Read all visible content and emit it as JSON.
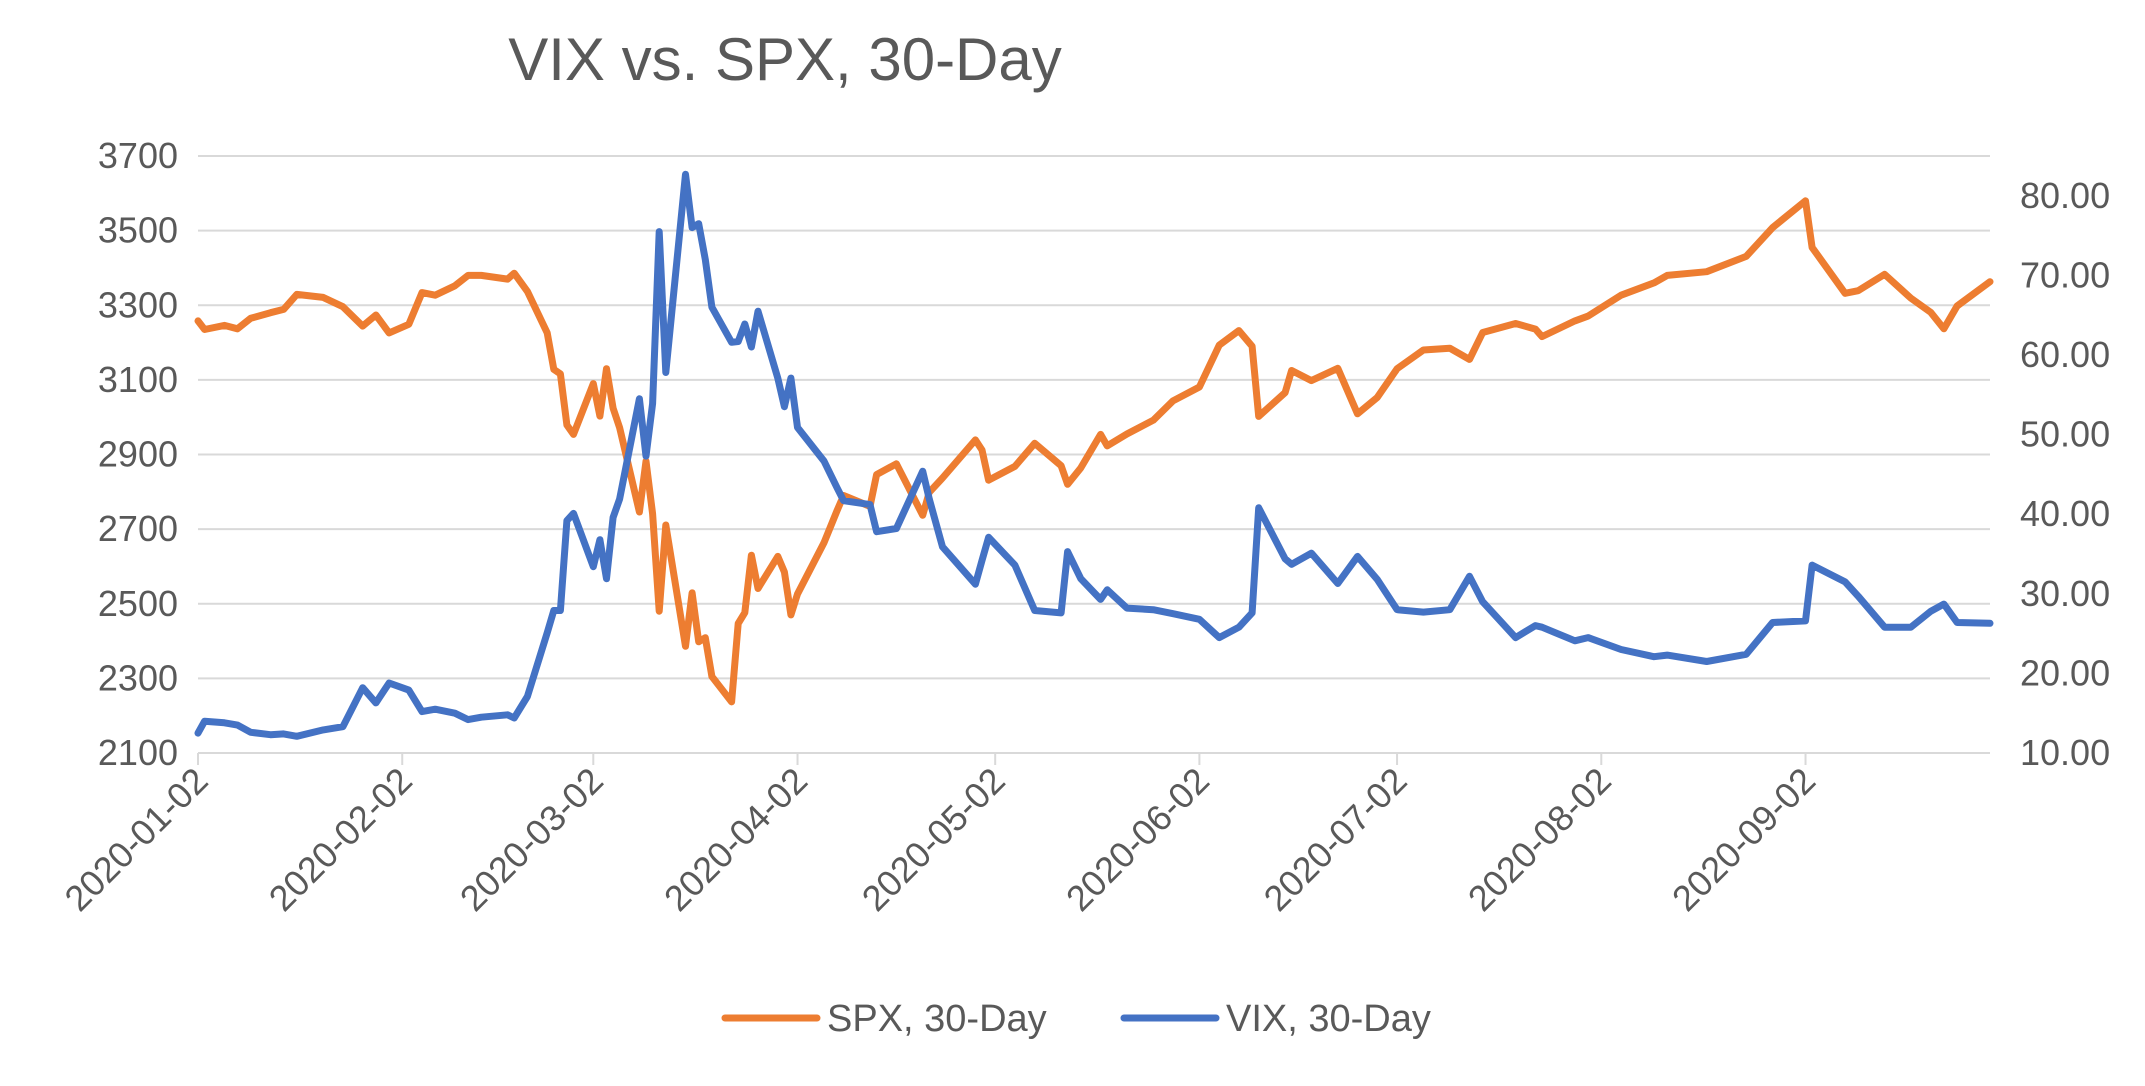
{
  "chart_data": {
    "type": "line",
    "title": "VIX vs. SPX, 30-Day",
    "xlabel": "",
    "ylabel": "",
    "y2label": "",
    "x_range": [
      "2020-01-02",
      "2020-09-30"
    ],
    "ylim": [
      2100,
      3700
    ],
    "y2lim": [
      10,
      85
    ],
    "y_ticks": [
      "2100",
      "2300",
      "2500",
      "2700",
      "2900",
      "3100",
      "3300",
      "3500",
      "3700"
    ],
    "y2_ticks": [
      "10.00",
      "20.00",
      "30.00",
      "40.00",
      "50.00",
      "60.00",
      "70.00",
      "80.00"
    ],
    "x_ticks": [
      "2020-01-02",
      "2020-02-02",
      "2020-03-02",
      "2020-04-02",
      "2020-05-02",
      "2020-06-02",
      "2020-07-02",
      "2020-08-02",
      "2020-09-02"
    ],
    "grid": true,
    "legend_position": "bottom",
    "series": [
      {
        "name": "SPX, 30-Day",
        "axis": "left",
        "color": "#ED7D31",
        "x": [
          "2020-01-02",
          "2020-01-03",
          "2020-01-06",
          "2020-01-08",
          "2020-01-10",
          "2020-01-13",
          "2020-01-15",
          "2020-01-17",
          "2020-01-21",
          "2020-01-24",
          "2020-01-27",
          "2020-01-29",
          "2020-01-31",
          "2020-02-03",
          "2020-02-05",
          "2020-02-07",
          "2020-02-10",
          "2020-02-12",
          "2020-02-14",
          "2020-02-18",
          "2020-02-19",
          "2020-02-21",
          "2020-02-24",
          "2020-02-25",
          "2020-02-26",
          "2020-02-27",
          "2020-02-28",
          "2020-03-02",
          "2020-03-03",
          "2020-03-04",
          "2020-03-05",
          "2020-03-06",
          "2020-03-09",
          "2020-03-10",
          "2020-03-11",
          "2020-03-12",
          "2020-03-13",
          "2020-03-16",
          "2020-03-17",
          "2020-03-18",
          "2020-03-19",
          "2020-03-20",
          "2020-03-23",
          "2020-03-24",
          "2020-03-25",
          "2020-03-26",
          "2020-03-27",
          "2020-03-30",
          "2020-03-31",
          "2020-04-01",
          "2020-04-02",
          "2020-04-06",
          "2020-04-08",
          "2020-04-09",
          "2020-04-13",
          "2020-04-14",
          "2020-04-17",
          "2020-04-21",
          "2020-04-22",
          "2020-04-24",
          "2020-04-29",
          "2020-04-30",
          "2020-05-01",
          "2020-05-05",
          "2020-05-08",
          "2020-05-12",
          "2020-05-13",
          "2020-05-15",
          "2020-05-18",
          "2020-05-19",
          "2020-05-22",
          "2020-05-26",
          "2020-05-29",
          "2020-06-02",
          "2020-06-05",
          "2020-06-08",
          "2020-06-10",
          "2020-06-11",
          "2020-06-15",
          "2020-06-16",
          "2020-06-19",
          "2020-06-23",
          "2020-06-26",
          "2020-06-29",
          "2020-07-02",
          "2020-07-06",
          "2020-07-10",
          "2020-07-13",
          "2020-07-15",
          "2020-07-20",
          "2020-07-23",
          "2020-07-24",
          "2020-07-29",
          "2020-07-31",
          "2020-08-05",
          "2020-08-10",
          "2020-08-12",
          "2020-08-18",
          "2020-08-24",
          "2020-08-28",
          "2020-09-02",
          "2020-09-03",
          "2020-09-08",
          "2020-09-10",
          "2020-09-14",
          "2020-09-18",
          "2020-09-21",
          "2020-09-23",
          "2020-09-25",
          "2020-09-30"
        ],
        "values": [
          3258,
          3235,
          3246,
          3237,
          3265,
          3280,
          3289,
          3329,
          3321,
          3296,
          3244,
          3274,
          3226,
          3249,
          3334,
          3327,
          3352,
          3380,
          3380,
          3370,
          3386,
          3337,
          3226,
          3128,
          3116,
          2979,
          2954,
          3090,
          3003,
          3130,
          3024,
          2972,
          2746,
          2882,
          2741,
          2480,
          2711,
          2386,
          2529,
          2398,
          2409,
          2305,
          2237,
          2447,
          2476,
          2630,
          2541,
          2627,
          2585,
          2470,
          2526,
          2663,
          2750,
          2790,
          2761,
          2846,
          2875,
          2737,
          2799,
          2837,
          2939,
          2912,
          2831,
          2868,
          2930,
          2870,
          2820,
          2864,
          2954,
          2923,
          2955,
          2992,
          3044,
          3081,
          3193,
          3232,
          3190,
          3002,
          3066,
          3125,
          3098,
          3131,
          3009,
          3053,
          3130,
          3180,
          3185,
          3155,
          3227,
          3251,
          3236,
          3216,
          3258,
          3271,
          3327,
          3360,
          3380,
          3390,
          3431,
          3508,
          3580,
          3455,
          3332,
          3339,
          3383,
          3319,
          3281,
          3237,
          3298,
          3363
        ]
      },
      {
        "name": "VIX, 30-Day",
        "axis": "right",
        "color": "#4472C4",
        "x": [
          "2020-01-02",
          "2020-01-03",
          "2020-01-06",
          "2020-01-08",
          "2020-01-10",
          "2020-01-13",
          "2020-01-15",
          "2020-01-17",
          "2020-01-21",
          "2020-01-24",
          "2020-01-27",
          "2020-01-29",
          "2020-01-31",
          "2020-02-03",
          "2020-02-05",
          "2020-02-07",
          "2020-02-10",
          "2020-02-12",
          "2020-02-14",
          "2020-02-18",
          "2020-02-19",
          "2020-02-21",
          "2020-02-24",
          "2020-02-25",
          "2020-02-26",
          "2020-02-27",
          "2020-02-28",
          "2020-03-02",
          "2020-03-03",
          "2020-03-04",
          "2020-03-05",
          "2020-03-06",
          "2020-03-09",
          "2020-03-10",
          "2020-03-11",
          "2020-03-12",
          "2020-03-13",
          "2020-03-16",
          "2020-03-17",
          "2020-03-18",
          "2020-03-19",
          "2020-03-20",
          "2020-03-23",
          "2020-03-24",
          "2020-03-25",
          "2020-03-26",
          "2020-03-27",
          "2020-03-30",
          "2020-03-31",
          "2020-04-01",
          "2020-04-02",
          "2020-04-06",
          "2020-04-08",
          "2020-04-09",
          "2020-04-13",
          "2020-04-14",
          "2020-04-17",
          "2020-04-21",
          "2020-04-22",
          "2020-04-24",
          "2020-04-29",
          "2020-04-30",
          "2020-05-01",
          "2020-05-05",
          "2020-05-08",
          "2020-05-12",
          "2020-05-13",
          "2020-05-15",
          "2020-05-18",
          "2020-05-19",
          "2020-05-22",
          "2020-05-26",
          "2020-05-29",
          "2020-06-02",
          "2020-06-05",
          "2020-06-08",
          "2020-06-10",
          "2020-06-11",
          "2020-06-15",
          "2020-06-16",
          "2020-06-19",
          "2020-06-23",
          "2020-06-26",
          "2020-06-29",
          "2020-07-02",
          "2020-07-06",
          "2020-07-10",
          "2020-07-13",
          "2020-07-15",
          "2020-07-20",
          "2020-07-23",
          "2020-07-24",
          "2020-07-29",
          "2020-07-31",
          "2020-08-05",
          "2020-08-10",
          "2020-08-12",
          "2020-08-18",
          "2020-08-24",
          "2020-08-28",
          "2020-09-02",
          "2020-09-03",
          "2020-09-08",
          "2020-09-10",
          "2020-09-14",
          "2020-09-18",
          "2020-09-21",
          "2020-09-23",
          "2020-09-25",
          "2020-09-30"
        ],
        "values": [
          12.5,
          14.0,
          13.8,
          13.5,
          12.6,
          12.3,
          12.4,
          12.1,
          12.9,
          13.3,
          18.2,
          16.3,
          18.8,
          17.9,
          15.2,
          15.5,
          15.0,
          14.2,
          14.5,
          14.8,
          14.4,
          17.1,
          25.1,
          27.9,
          27.9,
          39.2,
          40.1,
          33.4,
          36.8,
          31.9,
          39.6,
          41.9,
          54.5,
          47.3,
          53.9,
          75.5,
          57.8,
          82.7,
          76.0,
          76.5,
          72.0,
          66.0,
          61.6,
          61.7,
          63.9,
          61.0,
          65.5,
          57.1,
          53.5,
          57.1,
          50.9,
          46.7,
          43.3,
          41.7,
          41.2,
          37.8,
          38.2,
          45.4,
          41.9,
          35.9,
          31.2,
          34.2,
          37.1,
          33.6,
          27.9,
          27.6,
          35.3,
          31.9,
          29.3,
          30.5,
          28.2,
          28.0,
          27.5,
          26.8,
          24.5,
          25.8,
          27.6,
          40.8,
          34.4,
          33.7,
          35.1,
          31.3,
          34.7,
          31.8,
          28.0,
          27.7,
          28.0,
          32.2,
          29.0,
          24.5,
          26.0,
          25.8,
          24.1,
          24.5,
          23.0,
          22.1,
          22.3,
          21.5,
          22.4,
          26.4,
          26.6,
          33.6,
          31.5,
          29.7,
          25.8,
          25.8,
          27.8,
          28.7,
          26.4,
          26.3
        ]
      }
    ]
  }
}
